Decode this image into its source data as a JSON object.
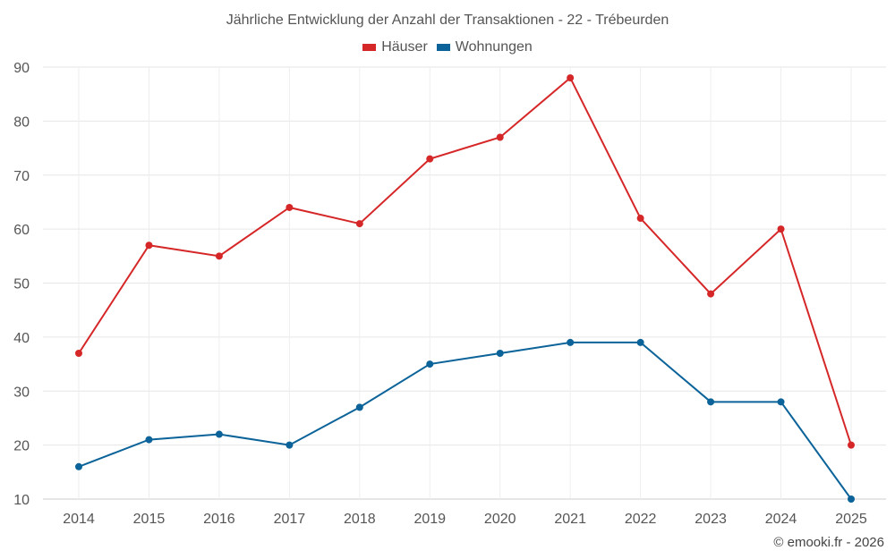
{
  "chart_data": {
    "type": "line",
    "title": "Jährliche Entwicklung der Anzahl der Transaktionen - 22 - Trébeurden",
    "categories": [
      "2014",
      "2015",
      "2016",
      "2017",
      "2018",
      "2019",
      "2020",
      "2021",
      "2022",
      "2023",
      "2024",
      "2025"
    ],
    "series": [
      {
        "name": "Häuser",
        "color": "#d62728",
        "values": [
          37,
          57,
          55,
          64,
          61,
          73,
          77,
          88,
          62,
          48,
          60,
          20
        ]
      },
      {
        "name": "Wohnungen",
        "color": "#0b6399",
        "values": [
          16,
          21,
          22,
          20,
          27,
          35,
          37,
          39,
          39,
          28,
          28,
          10
        ]
      }
    ],
    "ylim": [
      10,
      90
    ],
    "yticks": [
      10,
      20,
      30,
      40,
      50,
      60,
      70,
      80,
      90
    ],
    "grid": true,
    "legend": "top-center",
    "xlabel": "",
    "ylabel": ""
  },
  "credit": "© emooki.fr - 2026"
}
